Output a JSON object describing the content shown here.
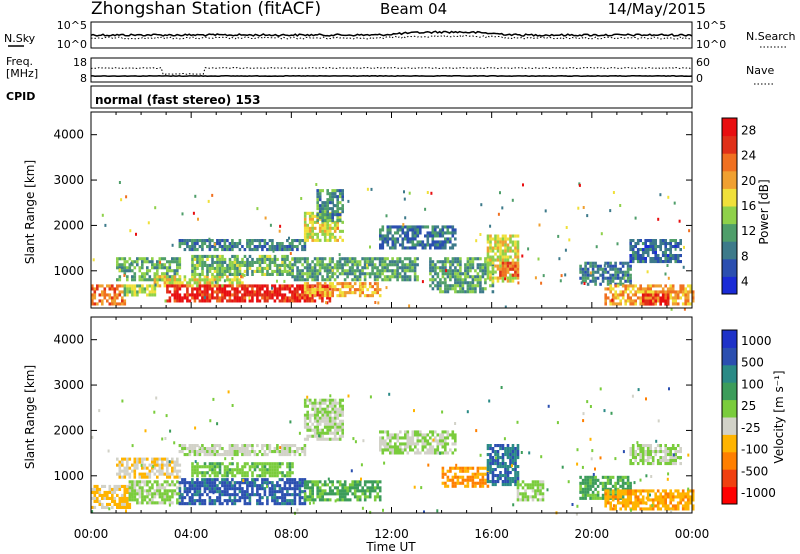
{
  "header": {
    "station": "Zhongshan Station (fitACF)",
    "beam": "Beam 04",
    "date": "14/May/2015"
  },
  "panels": {
    "nsky": {
      "label": "N.Sky",
      "ticks_left": [
        "10^5",
        "10^0"
      ],
      "ticks_right": [
        "10^5",
        "10^0"
      ],
      "legend": "N.Search"
    },
    "freq": {
      "label_line1": "Freq.",
      "label_line2": "[MHz]",
      "ticks_left": [
        "18",
        "8"
      ],
      "ticks_right": [
        "60",
        "0"
      ],
      "legend": "Nave"
    },
    "cpid": {
      "label": "CPID",
      "text": "normal (fast stereo) 153"
    }
  },
  "axes": {
    "ylabel": "Slant Range [km]",
    "yticks": [
      "4000",
      "3000",
      "2000",
      "1000"
    ],
    "xlabel": "Time UT",
    "xticks": [
      "00:00",
      "04:00",
      "08:00",
      "12:00",
      "16:00",
      "20:00",
      "00:00"
    ]
  },
  "colors": {
    "power": [
      "#1a2bd6",
      "#2b4fb0",
      "#3d7a8a",
      "#4f9e6a",
      "#8fd14a",
      "#f0e03a",
      "#f0a030",
      "#f07020",
      "#e03018",
      "#e80e10"
    ],
    "velocity": [
      "#ff0000",
      "#f04010",
      "#ff7f00",
      "#ffb400",
      "#d2d2c8",
      "#7acc3c",
      "#3c9c5a",
      "#2a8a86",
      "#2b4fb0",
      "#1e32c8"
    ]
  },
  "chart_data": [
    {
      "type": "heatmap",
      "title": "",
      "quantity": "Power",
      "ylabel": "Slant Range [km]",
      "xlabel": "",
      "xlim": [
        "00:00",
        "00:00"
      ],
      "ylim": [
        180,
        4500
      ],
      "colorbar": {
        "label": "Power [dB]",
        "ticks": [
          "28",
          "24",
          "20",
          "16",
          "12",
          "8",
          "4"
        ],
        "range": [
          0,
          30
        ]
      },
      "regions": [
        {
          "t": [
            0.0,
            1.3
          ],
          "r": [
            300,
            700
          ],
          "value": 22
        },
        {
          "t": [
            1.3,
            2.5
          ],
          "r": [
            450,
            700
          ],
          "value": 14
        },
        {
          "t": [
            1.0,
            3.5
          ],
          "r": [
            800,
            1300
          ],
          "value": 11
        },
        {
          "t": [
            2.5,
            6.0
          ],
          "r": [
            650,
            900
          ],
          "value": 16
        },
        {
          "t": [
            3.0,
            9.5
          ],
          "r": [
            350,
            700
          ],
          "value": 27
        },
        {
          "t": [
            4.0,
            8.0
          ],
          "r": [
            900,
            1350
          ],
          "value": 12
        },
        {
          "t": [
            3.5,
            8.5
          ],
          "r": [
            1500,
            1700
          ],
          "value": 8
        },
        {
          "t": [
            8.5,
            10.0
          ],
          "r": [
            1700,
            2300
          ],
          "value": 16
        },
        {
          "t": [
            9.0,
            10.0
          ],
          "r": [
            2100,
            2800
          ],
          "value": 9
        },
        {
          "t": [
            8.5,
            11.5
          ],
          "r": [
            450,
            750
          ],
          "value": 19
        },
        {
          "t": [
            8.0,
            13.0
          ],
          "r": [
            800,
            1300
          ],
          "value": 10
        },
        {
          "t": [
            11.5,
            14.5
          ],
          "r": [
            1500,
            2000
          ],
          "value": 7
        },
        {
          "t": [
            13.5,
            16.0
          ],
          "r": [
            550,
            1300
          ],
          "value": 10
        },
        {
          "t": [
            15.8,
            17.0
          ],
          "r": [
            800,
            1800
          ],
          "value": 16
        },
        {
          "t": [
            16.3,
            17.0
          ],
          "r": [
            900,
            1200
          ],
          "value": 23
        },
        {
          "t": [
            19.5,
            21.5
          ],
          "r": [
            700,
            1200
          ],
          "value": 8
        },
        {
          "t": [
            20.5,
            24.0
          ],
          "r": [
            300,
            700
          ],
          "value": 20
        },
        {
          "t": [
            22.0,
            23.0
          ],
          "r": [
            250,
            500
          ],
          "value": 27
        },
        {
          "t": [
            21.5,
            23.5
          ],
          "r": [
            1200,
            1700
          ],
          "value": 6
        }
      ]
    },
    {
      "type": "heatmap",
      "title": "",
      "quantity": "Velocity",
      "ylabel": "Slant Range [km]",
      "xlabel": "Time UT",
      "xlim": [
        "00:00",
        "00:00"
      ],
      "ylim": [
        180,
        4500
      ],
      "colorbar": {
        "label": "Velocity [m s⁻¹]",
        "ticks": [
          "1000",
          "500",
          "100",
          "25",
          "-25",
          "-100",
          "-500",
          "-1000"
        ],
        "range": [
          -1200,
          1200
        ]
      },
      "regions": [
        {
          "t": [
            0.0,
            1.5
          ],
          "r": [
            300,
            800
          ],
          "value": -300
        },
        {
          "t": [
            1.5,
            3.5
          ],
          "r": [
            400,
            900
          ],
          "value": 60
        },
        {
          "t": [
            1.0,
            3.5
          ],
          "r": [
            1000,
            1400
          ],
          "value": -200
        },
        {
          "t": [
            3.5,
            8.5
          ],
          "r": [
            400,
            950
          ],
          "value": 800
        },
        {
          "t": [
            4.0,
            8.0
          ],
          "r": [
            1000,
            1300
          ],
          "value": 150
        },
        {
          "t": [
            3.5,
            8.5
          ],
          "r": [
            1500,
            1700
          ],
          "value": -50
        },
        {
          "t": [
            8.5,
            10.0
          ],
          "r": [
            1800,
            2700
          ],
          "value": 0
        },
        {
          "t": [
            8.5,
            11.5
          ],
          "r": [
            450,
            900
          ],
          "value": 300
        },
        {
          "t": [
            11.5,
            14.5
          ],
          "r": [
            1500,
            2000
          ],
          "value": 0
        },
        {
          "t": [
            14.0,
            15.8
          ],
          "r": [
            800,
            1200
          ],
          "value": -500
        },
        {
          "t": [
            15.8,
            17.0
          ],
          "r": [
            800,
            1700
          ],
          "value": 700
        },
        {
          "t": [
            17.0,
            18.0
          ],
          "r": [
            500,
            900
          ],
          "value": 80
        },
        {
          "t": [
            19.5,
            21.5
          ],
          "r": [
            500,
            1000
          ],
          "value": 300
        },
        {
          "t": [
            20.5,
            24.0
          ],
          "r": [
            300,
            700
          ],
          "value": -400
        },
        {
          "t": [
            21.5,
            23.5
          ],
          "r": [
            1300,
            1700
          ],
          "value": 0
        }
      ]
    }
  ]
}
